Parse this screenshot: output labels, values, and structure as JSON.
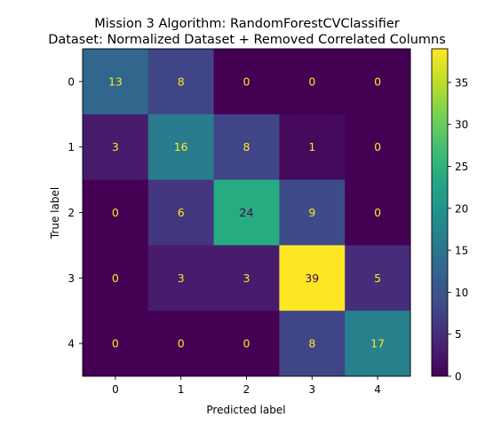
{
  "chart_data": {
    "type": "heatmap",
    "title": "Mission 3 Algorithm: RandomForestCVClassifier",
    "subtitle": "Dataset: Normalized Dataset + Removed Correlated Columns",
    "xlabel": "Predicted label",
    "ylabel": "True label",
    "x_categories": [
      "0",
      "1",
      "2",
      "3",
      "4"
    ],
    "y_categories": [
      "0",
      "1",
      "2",
      "3",
      "4"
    ],
    "values": [
      [
        13,
        8,
        0,
        0,
        0
      ],
      [
        3,
        16,
        8,
        1,
        0
      ],
      [
        0,
        6,
        24,
        9,
        0
      ],
      [
        0,
        3,
        3,
        39,
        5
      ],
      [
        0,
        0,
        0,
        8,
        17
      ]
    ],
    "colorbar": {
      "min": 0,
      "max": 39,
      "colormap": "viridis",
      "ticks": [
        0,
        5,
        10,
        15,
        20,
        25,
        30,
        35
      ]
    },
    "text_colors": {
      "dark_cell": "#fde725",
      "light_cell": "#440154"
    },
    "grid": false
  }
}
